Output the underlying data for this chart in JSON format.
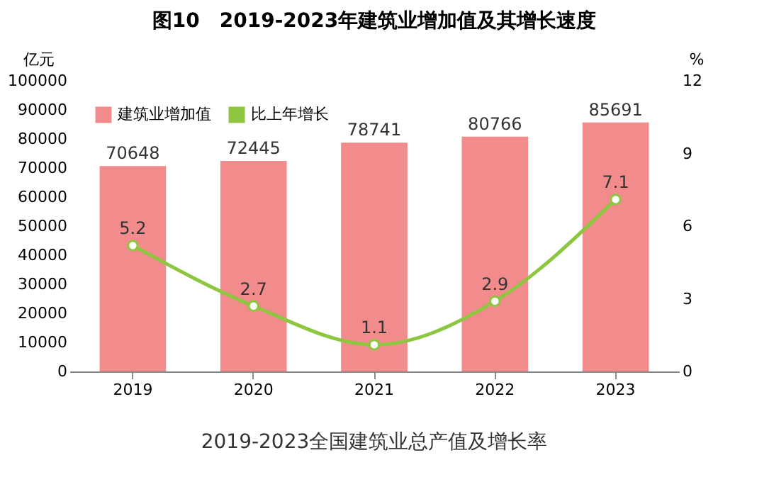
{
  "chart_data": {
    "type": "bar",
    "title": "图10　2019-2023年建筑业增加值及其增长速度",
    "ylabel": "亿元",
    "y2label": "%",
    "categories": [
      "2019",
      "2020",
      "2021",
      "2022",
      "2023"
    ],
    "series": [
      {
        "name": "建筑业增加值",
        "color": "#f28b8b",
        "values": [
          70648,
          72445,
          78741,
          80766,
          85691
        ]
      },
      {
        "name": "比上年增长",
        "type": "line",
        "axis": "y2",
        "color": "#8dc63f",
        "marker": "circle",
        "values": [
          5.2,
          2.7,
          1.1,
          2.9,
          7.1
        ]
      }
    ],
    "ylim": [
      0,
      100000
    ],
    "yticks": [
      0,
      10000,
      20000,
      30000,
      40000,
      50000,
      60000,
      70000,
      80000,
      90000,
      100000
    ],
    "y2lim": [
      0,
      12
    ],
    "y2ticks": [
      0,
      3,
      6,
      9,
      12
    ],
    "data_labels": true,
    "grid": false,
    "legend": "top left",
    "annotations": [
      "2019-2023全国建筑业总产值及增长率"
    ]
  }
}
